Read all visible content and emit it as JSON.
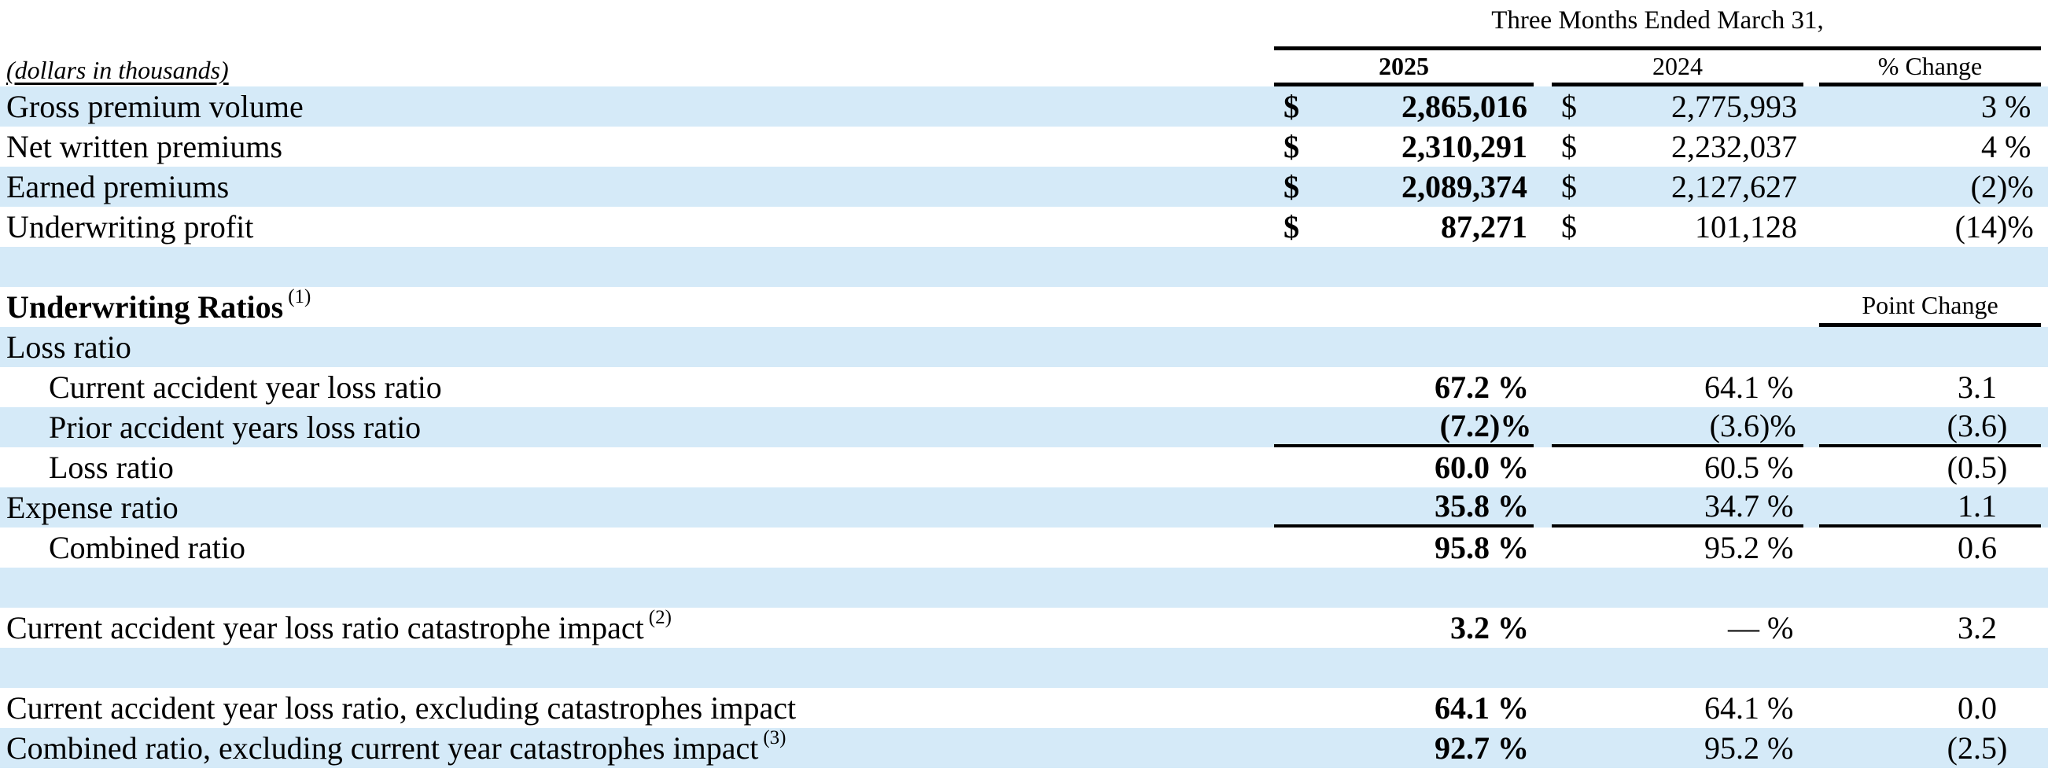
{
  "document": {
    "unit_note": "(dollars in thousands)",
    "period_header": "Three Months Ended March 31,",
    "columns": [
      "2025",
      "2024",
      "% Change"
    ],
    "point_change_header": "Point Change",
    "colors": {
      "row_shade": "#d5eaf8",
      "rule": "#000000",
      "text": "#000000"
    },
    "rows": [
      {
        "type": "data",
        "label": "Gross premium volume",
        "indent": false,
        "shade": true,
        "rule_below": false,
        "cells": [
          {
            "sym": "$",
            "num": "2,865,016",
            "suf": null,
            "bold": true
          },
          {
            "sym": "$",
            "num": "2,775,993",
            "suf": null,
            "bold": false
          },
          {
            "sym": null,
            "num": "3",
            "suf": " %",
            "bold": false
          }
        ]
      },
      {
        "type": "data",
        "label": "Net written premiums",
        "indent": false,
        "shade": false,
        "rule_below": false,
        "cells": [
          {
            "sym": "$",
            "num": "2,310,291",
            "suf": null,
            "bold": true
          },
          {
            "sym": "$",
            "num": "2,232,037",
            "suf": null,
            "bold": false
          },
          {
            "sym": null,
            "num": "4",
            "suf": " %",
            "bold": false
          }
        ]
      },
      {
        "type": "data",
        "label": "Earned premiums",
        "indent": false,
        "shade": true,
        "rule_below": false,
        "cells": [
          {
            "sym": "$",
            "num": "2,089,374",
            "suf": null,
            "bold": true
          },
          {
            "sym": "$",
            "num": "2,127,627",
            "suf": null,
            "bold": false
          },
          {
            "sym": null,
            "num": "(2",
            "suf": ")%",
            "bold": false
          }
        ]
      },
      {
        "type": "data",
        "label": "Underwriting profit",
        "indent": false,
        "shade": false,
        "rule_below": false,
        "cells": [
          {
            "sym": "$",
            "num": "87,271",
            "suf": null,
            "bold": true
          },
          {
            "sym": "$",
            "num": "101,128",
            "suf": null,
            "bold": false
          },
          {
            "sym": null,
            "num": "(14",
            "suf": ")%",
            "bold": false
          }
        ]
      },
      {
        "type": "spacer",
        "shade": true
      },
      {
        "type": "section",
        "label": "Underwriting Ratios",
        "sup": "(1)",
        "bold": true,
        "shade": false,
        "show_point_change": true
      },
      {
        "type": "data",
        "label": "Loss ratio",
        "indent": false,
        "shade": true,
        "rule_below": false,
        "cells": [
          null,
          null,
          null
        ]
      },
      {
        "type": "data",
        "label": "Current accident year loss ratio",
        "indent": true,
        "shade": false,
        "rule_below": false,
        "cells": [
          {
            "sym": null,
            "num": "67.2",
            "suf": " %",
            "bold": true
          },
          {
            "sym": null,
            "num": "64.1",
            "suf": " %",
            "bold": false
          },
          {
            "sym": null,
            "num": "3.1",
            "suf": "",
            "bold": false
          }
        ]
      },
      {
        "type": "data",
        "label": "Prior accident years loss ratio",
        "indent": true,
        "shade": true,
        "rule_below": true,
        "cells": [
          {
            "sym": null,
            "num": "(7.2",
            "suf": ")%",
            "bold": true
          },
          {
            "sym": null,
            "num": "(3.6",
            "suf": ")%",
            "bold": false
          },
          {
            "sym": null,
            "num": "(3.6",
            "suf": ")",
            "bold": false
          }
        ]
      },
      {
        "type": "data",
        "label": "Loss ratio",
        "indent": true,
        "shade": false,
        "rule_below": false,
        "cells": [
          {
            "sym": null,
            "num": "60.0",
            "suf": " %",
            "bold": true
          },
          {
            "sym": null,
            "num": "60.5",
            "suf": " %",
            "bold": false
          },
          {
            "sym": null,
            "num": "(0.5",
            "suf": ")",
            "bold": false
          }
        ]
      },
      {
        "type": "data",
        "label": "Expense ratio",
        "indent": false,
        "shade": true,
        "rule_below": true,
        "cells": [
          {
            "sym": null,
            "num": "35.8",
            "suf": " %",
            "bold": true
          },
          {
            "sym": null,
            "num": "34.7",
            "suf": " %",
            "bold": false
          },
          {
            "sym": null,
            "num": "1.1",
            "suf": "",
            "bold": false
          }
        ]
      },
      {
        "type": "data",
        "label": "Combined ratio",
        "indent": true,
        "shade": false,
        "rule_below": false,
        "cells": [
          {
            "sym": null,
            "num": "95.8",
            "suf": " %",
            "bold": true
          },
          {
            "sym": null,
            "num": "95.2",
            "suf": " %",
            "bold": false
          },
          {
            "sym": null,
            "num": "0.6",
            "suf": "",
            "bold": false
          }
        ]
      },
      {
        "type": "spacer",
        "shade": true
      },
      {
        "type": "data",
        "label": "Current accident year loss ratio catastrophe impact",
        "sup": "(2)",
        "indent": false,
        "shade": false,
        "rule_below": false,
        "cells": [
          {
            "sym": null,
            "num": "3.2",
            "suf": " %",
            "bold": true
          },
          {
            "sym": null,
            "num": "—",
            "suf": " %",
            "bold": false
          },
          {
            "sym": null,
            "num": "3.2",
            "suf": "",
            "bold": false
          }
        ]
      },
      {
        "type": "spacer",
        "shade": true
      },
      {
        "type": "data",
        "label": "Current accident year loss ratio, excluding catastrophes impact",
        "indent": false,
        "shade": false,
        "rule_below": false,
        "cells": [
          {
            "sym": null,
            "num": "64.1",
            "suf": " %",
            "bold": true
          },
          {
            "sym": null,
            "num": "64.1",
            "suf": " %",
            "bold": false
          },
          {
            "sym": null,
            "num": "0.0",
            "suf": "",
            "bold": false
          }
        ]
      },
      {
        "type": "data",
        "label": "Combined ratio, excluding current year catastrophes impact",
        "sup": "(3)",
        "indent": false,
        "shade": true,
        "rule_below": false,
        "cells": [
          {
            "sym": null,
            "num": "92.7",
            "suf": " %",
            "bold": true
          },
          {
            "sym": null,
            "num": "95.2",
            "suf": " %",
            "bold": false
          },
          {
            "sym": null,
            "num": "(2.5",
            "suf": ")",
            "bold": false
          }
        ]
      }
    ]
  }
}
